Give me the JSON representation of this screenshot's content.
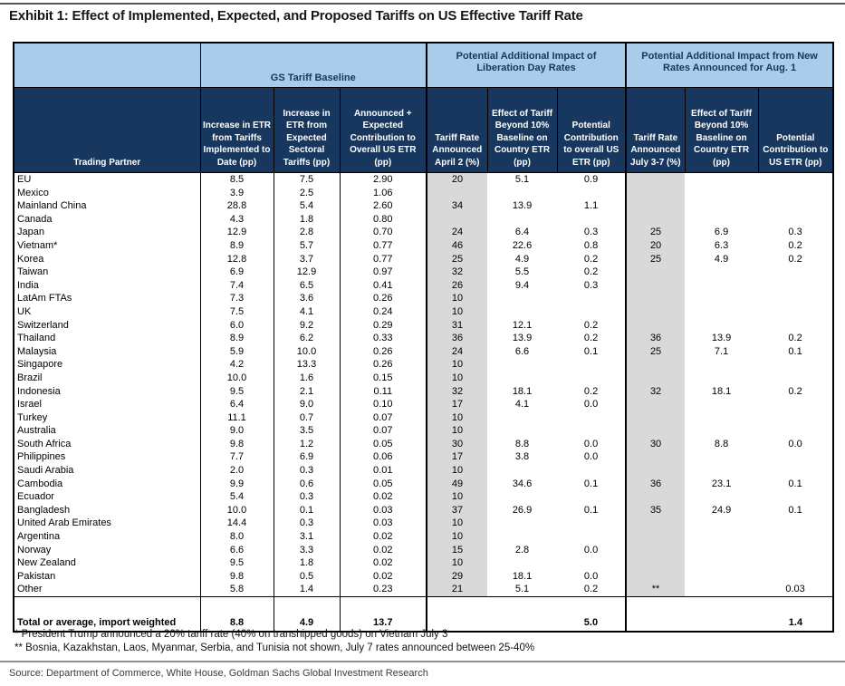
{
  "page": {
    "title": "Exhibit 1: Effect of Implemented, Expected, and Proposed Tariffs on US Effective Tariff Rate",
    "footnotes": [
      "* President Trump announced a 20% tariff rate (40% on transhipped goods) on Vietnam July 3",
      "** Bosnia, Kazakhstan, Laos, Myanmar, Serbia, and Tunisia not shown, July 7 rates announced between 25-40%"
    ],
    "source": "Source: Department of Commerce, White House, Goldman Sachs Global Investment Research"
  },
  "colors": {
    "header_navy": "#17375e",
    "header_light_blue": "#a9cceb",
    "shaded_column_gray": "#d9d9d9"
  },
  "table": {
    "groups": [
      "",
      "GS Tariff Baseline",
      "Potential Additional Impact of Liberation Day Rates",
      "Potential Additional Impact from New Rates Announced for Aug. 1"
    ],
    "columns": [
      "Trading Partner",
      "Increase in ETR from Tariffs Implemented to Date (pp)",
      "Increase in ETR from Expected Sectoral Tariffs (pp)",
      "Announced + Expected Contribution to Overall US ETR (pp)",
      "Tariff Rate Announced April 2 (%)",
      "Effect of Tariff Beyond 10% Baseline on Country ETR (pp)",
      "Potential Contribution to overall US ETR (pp)",
      "Tariff Rate Announced July 3-7 (%)",
      "Effect of Tariff Beyond 10% Baseline on Country ETR (pp)",
      "Potential Contribution to US ETR (pp)"
    ],
    "rows": [
      [
        "EU",
        "8.5",
        "7.5",
        "2.90",
        "20",
        "5.1",
        "0.9",
        "",
        "",
        ""
      ],
      [
        "Mexico",
        "3.9",
        "2.5",
        "1.06",
        "",
        "",
        "",
        "",
        "",
        ""
      ],
      [
        "Mainland China",
        "28.8",
        "5.4",
        "2.60",
        "34",
        "13.9",
        "1.1",
        "",
        "",
        ""
      ],
      [
        "Canada",
        "4.3",
        "1.8",
        "0.80",
        "",
        "",
        "",
        "",
        "",
        ""
      ],
      [
        "Japan",
        "12.9",
        "2.8",
        "0.70",
        "24",
        "6.4",
        "0.3",
        "25",
        "6.9",
        "0.3"
      ],
      [
        "Vietnam*",
        "8.9",
        "5.7",
        "0.77",
        "46",
        "22.6",
        "0.8",
        "20",
        "6.3",
        "0.2"
      ],
      [
        "Korea",
        "12.8",
        "3.7",
        "0.77",
        "25",
        "4.9",
        "0.2",
        "25",
        "4.9",
        "0.2"
      ],
      [
        "Taiwan",
        "6.9",
        "12.9",
        "0.97",
        "32",
        "5.5",
        "0.2",
        "",
        "",
        ""
      ],
      [
        "India",
        "7.4",
        "6.5",
        "0.41",
        "26",
        "9.4",
        "0.3",
        "",
        "",
        ""
      ],
      [
        "LatAm FTAs",
        "7.3",
        "3.6",
        "0.26",
        "10",
        "",
        "",
        "",
        "",
        ""
      ],
      [
        "UK",
        "7.5",
        "4.1",
        "0.24",
        "10",
        "",
        "",
        "",
        "",
        ""
      ],
      [
        "Switzerland",
        "6.0",
        "9.2",
        "0.29",
        "31",
        "12.1",
        "0.2",
        "",
        "",
        ""
      ],
      [
        "Thailand",
        "8.9",
        "6.2",
        "0.33",
        "36",
        "13.9",
        "0.2",
        "36",
        "13.9",
        "0.2"
      ],
      [
        "Malaysia",
        "5.9",
        "10.0",
        "0.26",
        "24",
        "6.6",
        "0.1",
        "25",
        "7.1",
        "0.1"
      ],
      [
        "Singapore",
        "4.2",
        "13.3",
        "0.26",
        "10",
        "",
        "",
        "",
        "",
        ""
      ],
      [
        "Brazil",
        "10.0",
        "1.6",
        "0.15",
        "10",
        "",
        "",
        "",
        "",
        ""
      ],
      [
        "Indonesia",
        "9.5",
        "2.1",
        "0.11",
        "32",
        "18.1",
        "0.2",
        "32",
        "18.1",
        "0.2"
      ],
      [
        "Israel",
        "6.4",
        "9.0",
        "0.10",
        "17",
        "4.1",
        "0.0",
        "",
        "",
        ""
      ],
      [
        "Turkey",
        "11.1",
        "0.7",
        "0.07",
        "10",
        "",
        "",
        "",
        "",
        ""
      ],
      [
        "Australia",
        "9.0",
        "3.5",
        "0.07",
        "10",
        "",
        "",
        "",
        "",
        ""
      ],
      [
        "South Africa",
        "9.8",
        "1.2",
        "0.05",
        "30",
        "8.8",
        "0.0",
        "30",
        "8.8",
        "0.0"
      ],
      [
        "Philippines",
        "7.7",
        "6.9",
        "0.06",
        "17",
        "3.8",
        "0.0",
        "",
        "",
        ""
      ],
      [
        "Saudi Arabia",
        "2.0",
        "0.3",
        "0.01",
        "10",
        "",
        "",
        "",
        "",
        ""
      ],
      [
        "Cambodia",
        "9.9",
        "0.6",
        "0.05",
        "49",
        "34.6",
        "0.1",
        "36",
        "23.1",
        "0.1"
      ],
      [
        "Ecuador",
        "5.4",
        "0.3",
        "0.02",
        "10",
        "",
        "",
        "",
        "",
        ""
      ],
      [
        "Bangladesh",
        "10.0",
        "0.1",
        "0.03",
        "37",
        "26.9",
        "0.1",
        "35",
        "24.9",
        "0.1"
      ],
      [
        "United Arab Emirates",
        "14.4",
        "0.3",
        "0.03",
        "10",
        "",
        "",
        "",
        "",
        ""
      ],
      [
        "Argentina",
        "8.0",
        "3.1",
        "0.02",
        "10",
        "",
        "",
        "",
        "",
        ""
      ],
      [
        "Norway",
        "6.6",
        "3.3",
        "0.02",
        "15",
        "2.8",
        "0.0",
        "",
        "",
        ""
      ],
      [
        "New Zealand",
        "9.5",
        "1.8",
        "0.02",
        "10",
        "",
        "",
        "",
        "",
        ""
      ],
      [
        "Pakistan",
        "9.8",
        "0.5",
        "0.02",
        "29",
        "18.1",
        "0.0",
        "",
        "",
        ""
      ],
      [
        "Other",
        "5.8",
        "1.4",
        "0.23",
        "21",
        "5.1",
        "0.2",
        "**",
        "",
        "0.03"
      ]
    ],
    "total_row": {
      "label": "Total or average, import weighted",
      "implemented": "8.8",
      "sectoral": "4.9",
      "announced_expected": "13.7",
      "liberation_contribution": "5.0",
      "aug_contribution": "1.4"
    }
  }
}
